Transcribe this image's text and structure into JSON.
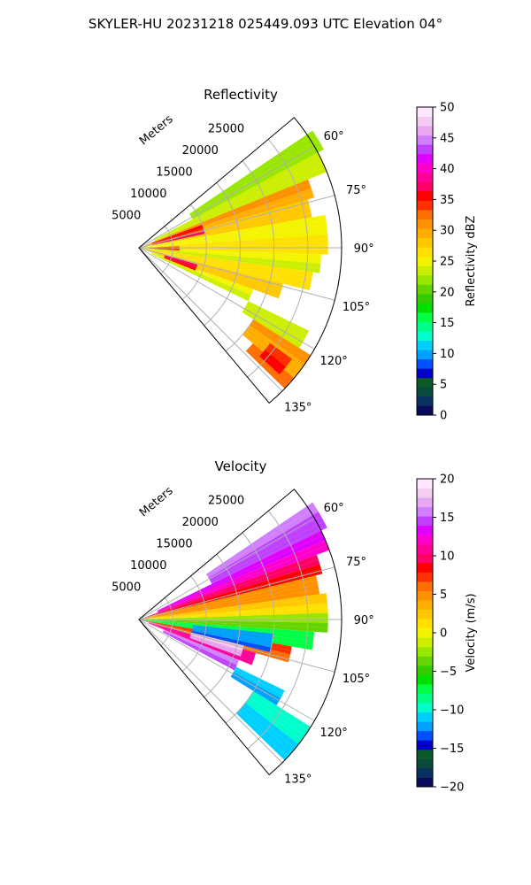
{
  "figure": {
    "suptitle": "SKYLER-HU  20231218  025449.093 UTC Elevation 04°"
  },
  "chart_data": [
    {
      "type": "heatmap",
      "projection": "polar-sector",
      "title": "Reflectivity",
      "range_label": "Meters",
      "range_ticks": [
        5000,
        10000,
        15000,
        20000,
        25000
      ],
      "range_tick_labels": [
        "5000",
        "10000",
        "15000",
        "20000",
        "25000"
      ],
      "range_max": 30000,
      "azimuth_range_deg": [
        50,
        140
      ],
      "azimuth_ticks": [
        60,
        75,
        90,
        105,
        120,
        135
      ],
      "azimuth_tick_labels": [
        "60°",
        "75°",
        "90°",
        "105°",
        "120°",
        "135°"
      ],
      "grid": true,
      "colorbar": {
        "label": "Reflectivity dBZ",
        "vmin": 0,
        "vmax": 50,
        "ticks": [
          0,
          5,
          10,
          15,
          20,
          25,
          30,
          35,
          40,
          45,
          50
        ],
        "tick_labels": [
          "0",
          "5",
          "10",
          "15",
          "20",
          "25",
          "30",
          "35",
          "40",
          "45",
          "50"
        ],
        "colors": [
          "#0a0a5a",
          "#083060",
          "#0b4a3a",
          "#0a5a2a",
          "#0000c8",
          "#0050ff",
          "#00a0ff",
          "#00d0ff",
          "#00ffcc",
          "#00ff88",
          "#00ff44",
          "#00e000",
          "#33cc00",
          "#66d400",
          "#99e600",
          "#ccee00",
          "#f4f400",
          "#ffe000",
          "#ffc800",
          "#ffae00",
          "#ff9000",
          "#ff6e00",
          "#ff3000",
          "#ff0000",
          "#ff0066",
          "#ff0099",
          "#ff00cc",
          "#e000ff",
          "#c040ff",
          "#d080ff",
          "#e8a8f0",
          "#f4ccf4",
          "#ffe8ff"
        ]
      },
      "bands": [
        {
          "az": [
            56,
            62
          ],
          "r": [
            9000,
            31000
          ],
          "value": 22
        },
        {
          "az": [
            62,
            68
          ],
          "r": [
            2500,
            30000
          ],
          "value": 23
        },
        {
          "az": [
            68,
            74
          ],
          "r": [
            1000,
            27000
          ],
          "value": 30
        },
        {
          "az": [
            74,
            80
          ],
          "r": [
            500,
            26000
          ],
          "value": 28
        },
        {
          "az": [
            80,
            86
          ],
          "r": [
            500,
            28000
          ],
          "value": 25
        },
        {
          "az": [
            86,
            92
          ],
          "r": [
            500,
            28000
          ],
          "value": 26
        },
        {
          "az": [
            92,
            98
          ],
          "r": [
            500,
            27000
          ],
          "value": 24
        },
        {
          "az": [
            98,
            104
          ],
          "r": [
            500,
            26000
          ],
          "value": 26
        },
        {
          "az": [
            104,
            110
          ],
          "r": [
            1000,
            22000
          ],
          "value": 28
        },
        {
          "az": [
            110,
            116
          ],
          "r": [
            2000,
            18000
          ],
          "value": 24
        },
        {
          "az": [
            116,
            122
          ],
          "r": [
            18000,
            28000
          ],
          "value": 23
        },
        {
          "az": [
            122,
            130
          ],
          "r": [
            20000,
            30000
          ],
          "value": 30
        },
        {
          "az": [
            130,
            134
          ],
          "r": [
            22000,
            30000
          ],
          "value": 32
        }
      ],
      "cells": [
        {
          "az": [
            70,
            78
          ],
          "r": [
            2000,
            10000
          ],
          "value": 36
        },
        {
          "az": [
            88,
            94
          ],
          "r": [
            1500,
            6000
          ],
          "value": 34
        },
        {
          "az": [
            106,
            112
          ],
          "r": [
            4000,
            9000
          ],
          "value": 36
        },
        {
          "az": [
            126,
            132
          ],
          "r": [
            24000,
            28000
          ],
          "value": 35
        }
      ]
    },
    {
      "type": "heatmap",
      "projection": "polar-sector",
      "title": "Velocity",
      "range_label": "Meters",
      "range_ticks": [
        5000,
        10000,
        15000,
        20000,
        25000
      ],
      "range_tick_labels": [
        "5000",
        "10000",
        "15000",
        "20000",
        "25000"
      ],
      "range_max": 30000,
      "azimuth_range_deg": [
        50,
        140
      ],
      "azimuth_ticks": [
        60,
        75,
        90,
        105,
        120,
        135
      ],
      "azimuth_tick_labels": [
        "60°",
        "75°",
        "90°",
        "105°",
        "120°",
        "135°"
      ],
      "grid": true,
      "colorbar": {
        "label": "Velocity (m/s)",
        "vmin": -20,
        "vmax": 20,
        "ticks": [
          -20,
          -15,
          -10,
          -5,
          0,
          5,
          10,
          15,
          20
        ],
        "tick_labels": [
          "−20",
          "−15",
          "−10",
          "−5",
          "0",
          "5",
          "10",
          "15",
          "20"
        ],
        "colors": [
          "#0a0a5a",
          "#083060",
          "#0b4a3a",
          "#0a5a2a",
          "#0000c8",
          "#0050ff",
          "#00a0ff",
          "#00d0ff",
          "#00ffcc",
          "#00ff88",
          "#00ff44",
          "#00e000",
          "#33cc00",
          "#66d400",
          "#99e600",
          "#ccee00",
          "#f4f400",
          "#ffe000",
          "#ffc800",
          "#ffae00",
          "#ff9000",
          "#ff6e00",
          "#ff3000",
          "#ff0000",
          "#ff0066",
          "#ff0099",
          "#ff00cc",
          "#e000ff",
          "#c040ff",
          "#d080ff",
          "#e8a8f0",
          "#f4ccf4",
          "#ffe8ff"
        ]
      },
      "bands": [
        {
          "az": [
            56,
            64
          ],
          "r": [
            12000,
            31000
          ],
          "value": 15
        },
        {
          "az": [
            64,
            70
          ],
          "r": [
            3000,
            30000
          ],
          "value": 12
        },
        {
          "az": [
            70,
            76
          ],
          "r": [
            1000,
            28000
          ],
          "value": 8
        },
        {
          "az": [
            76,
            82
          ],
          "r": [
            500,
            27000
          ],
          "value": 4
        },
        {
          "az": [
            82,
            88
          ],
          "r": [
            500,
            28000
          ],
          "value": 1
        },
        {
          "az": [
            88,
            94
          ],
          "r": [
            500,
            28000
          ],
          "value": -4
        },
        {
          "az": [
            94,
            100
          ],
          "r": [
            500,
            26000
          ],
          "value": -8
        },
        {
          "az": [
            100,
            106
          ],
          "r": [
            500,
            23000
          ],
          "value": 6
        },
        {
          "az": [
            106,
            112
          ],
          "r": [
            1500,
            18000
          ],
          "value": 10
        },
        {
          "az": [
            112,
            118
          ],
          "r": [
            4000,
            16000
          ],
          "value": 14
        },
        {
          "az": [
            116,
            122
          ],
          "r": [
            16000,
            24000
          ],
          "value": -12
        },
        {
          "az": [
            122,
            134
          ],
          "r": [
            20000,
            30000
          ],
          "value": -10
        }
      ],
      "cells": [
        {
          "az": [
            96,
            104
          ],
          "r": [
            8000,
            20000
          ],
          "value": -12
        },
        {
          "az": [
            104,
            110
          ],
          "r": [
            8000,
            16000
          ],
          "value": 17
        }
      ]
    }
  ]
}
